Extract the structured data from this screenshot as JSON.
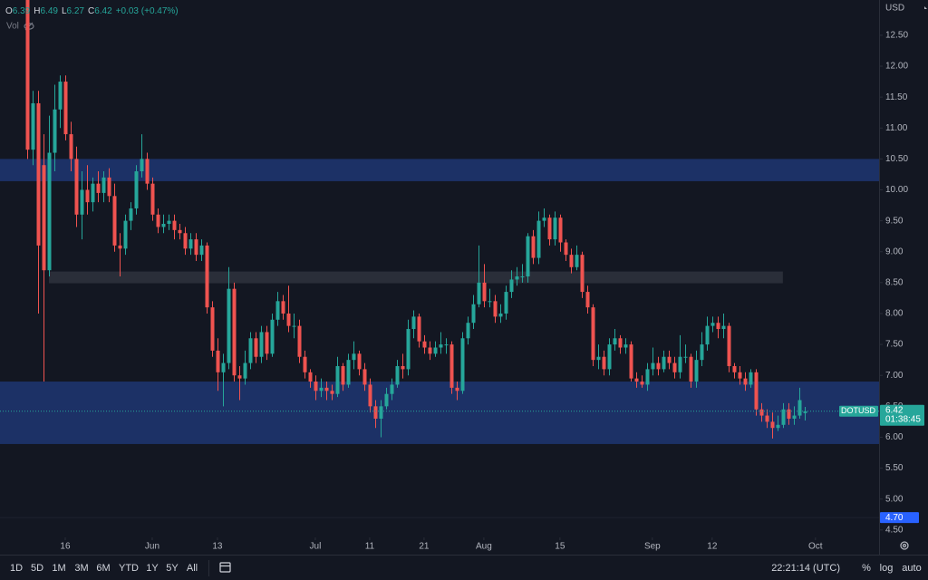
{
  "header": {
    "ohlc_labels": [
      "O",
      "H",
      "L",
      "C"
    ],
    "change": "+0.03 (+0.47%)",
    "volume_label": "Vol"
  },
  "chart_data": {
    "type": "candlestick",
    "symbol": "DOTUSD",
    "currency": "USD",
    "countdown": "01:38:45",
    "up_color": "#26a69a",
    "down_color": "#ef5350",
    "open": [
      13.2,
      10.65,
      11.4,
      10.4,
      8.7,
      10.6,
      11.3,
      11.75,
      10.9,
      10.5,
      9.6,
      10.0,
      9.8,
      10.1,
      9.95,
      10.2,
      9.9,
      9.1,
      9.05,
      9.5,
      9.7,
      10.3,
      10.5,
      10.1,
      9.6,
      9.4,
      9.45,
      9.5,
      9.35,
      9.3,
      9.05,
      9.2,
      8.95,
      9.1,
      8.1,
      7.4,
      7.05,
      7.2,
      8.4,
      7.0,
      6.95,
      7.2,
      7.6,
      7.3,
      7.7,
      7.35,
      7.9,
      8.2,
      8.0,
      7.8,
      7.8,
      7.3,
      7.05,
      6.9,
      6.75,
      6.8,
      6.75,
      6.7,
      7.15,
      6.85,
      7.25,
      7.35,
      7.1,
      6.85,
      6.5,
      6.3,
      6.5,
      6.7,
      6.85,
      7.15,
      7.1,
      7.75,
      7.95,
      7.55,
      7.45,
      7.35,
      7.45,
      7.5,
      7.5,
      6.8,
      6.75,
      7.6,
      7.85,
      8.15,
      8.5,
      8.2,
      8.2,
      7.95,
      8.0,
      8.35,
      8.55,
      8.6,
      8.6,
      9.25,
      8.9,
      9.5,
      9.55,
      9.2,
      9.55,
      9.15,
      8.95,
      8.75,
      8.95,
      8.35,
      8.1,
      7.25,
      7.3,
      7.1,
      7.5,
      7.6,
      7.45,
      7.5,
      6.95,
      6.9,
      6.85,
      7.1,
      7.2,
      7.1,
      7.3,
      7.2,
      7.05,
      7.3,
      7.3,
      6.9,
      7.25,
      7.5,
      7.8,
      7.85,
      7.75,
      7.8,
      7.15,
      7.05,
      6.95,
      6.85,
      7.05,
      6.45,
      6.35,
      6.25,
      6.15,
      6.2,
      6.45,
      6.3,
      6.35,
      6.39
    ],
    "high": [
      13.5,
      11.6,
      11.6,
      10.9,
      11.2,
      11.7,
      11.85,
      11.85,
      11.1,
      10.7,
      10.3,
      10.4,
      10.2,
      10.3,
      10.3,
      10.35,
      10.1,
      9.3,
      9.6,
      9.8,
      10.4,
      10.9,
      10.6,
      10.2,
      9.7,
      9.6,
      9.6,
      9.6,
      9.45,
      9.4,
      9.3,
      9.3,
      9.2,
      9.15,
      8.2,
      7.6,
      7.35,
      8.75,
      8.5,
      7.15,
      7.4,
      7.7,
      7.7,
      7.8,
      7.8,
      8.0,
      8.35,
      8.3,
      8.45,
      8.0,
      7.9,
      7.4,
      7.1,
      7.0,
      6.95,
      6.9,
      6.85,
      7.3,
      7.2,
      7.35,
      7.55,
      7.4,
      7.2,
      6.95,
      6.6,
      6.6,
      6.8,
      6.95,
      7.25,
      7.35,
      7.9,
      8.05,
      8.0,
      7.65,
      7.55,
      7.55,
      7.7,
      7.6,
      7.55,
      6.9,
      7.7,
      7.95,
      8.3,
      9.1,
      8.8,
      8.4,
      8.3,
      8.15,
      8.45,
      8.7,
      8.75,
      8.8,
      9.3,
      9.35,
      9.65,
      9.7,
      9.6,
      9.65,
      9.6,
      9.2,
      9.05,
      9.1,
      9.0,
      8.45,
      8.15,
      7.5,
      7.4,
      7.6,
      7.75,
      7.65,
      7.6,
      7.55,
      7.05,
      7.0,
      7.2,
      7.45,
      7.3,
      7.4,
      7.4,
      7.3,
      7.65,
      7.5,
      7.35,
      7.4,
      7.7,
      7.95,
      7.95,
      7.95,
      8.0,
      7.85,
      7.2,
      7.15,
      7.05,
      7.1,
      7.1,
      6.55,
      6.45,
      6.4,
      6.35,
      6.55,
      6.55,
      6.5,
      6.8,
      6.49
    ],
    "low": [
      10.5,
      10.4,
      8.0,
      6.9,
      8.6,
      10.3,
      11.0,
      10.8,
      10.3,
      9.4,
      9.2,
      9.6,
      9.65,
      9.8,
      9.8,
      9.8,
      9.0,
      8.6,
      8.95,
      9.35,
      9.6,
      10.2,
      10.0,
      9.5,
      9.3,
      9.3,
      9.35,
      9.2,
      9.2,
      8.95,
      8.95,
      8.85,
      8.85,
      8.0,
      7.3,
      6.75,
      6.5,
      7.1,
      6.9,
      6.6,
      6.85,
      7.1,
      7.2,
      7.2,
      7.25,
      7.3,
      7.8,
      7.9,
      7.7,
      7.6,
      7.2,
      6.95,
      6.8,
      6.6,
      6.65,
      6.6,
      6.6,
      6.65,
      6.75,
      6.8,
      7.1,
      7.0,
      6.75,
      6.4,
      6.15,
      6.0,
      6.45,
      6.6,
      6.8,
      6.95,
      7.0,
      7.6,
      7.45,
      7.35,
      7.25,
      7.3,
      7.35,
      7.35,
      6.7,
      6.6,
      6.7,
      7.5,
      7.75,
      8.1,
      8.1,
      8.1,
      7.85,
      7.85,
      7.9,
      8.25,
      8.45,
      8.5,
      8.5,
      8.8,
      8.8,
      9.4,
      9.1,
      9.1,
      9.0,
      8.85,
      8.65,
      8.7,
      8.25,
      8.0,
      7.15,
      7.1,
      7.0,
      7.0,
      7.4,
      7.35,
      7.35,
      6.9,
      6.8,
      6.8,
      6.75,
      7.0,
      7.0,
      7.05,
      7.1,
      6.95,
      6.95,
      7.2,
      6.8,
      6.8,
      7.15,
      7.4,
      7.7,
      7.6,
      7.6,
      7.05,
      6.95,
      6.85,
      6.75,
      6.8,
      6.35,
      6.25,
      6.15,
      5.98,
      6.1,
      6.15,
      6.2,
      6.2,
      6.3,
      6.27
    ],
    "close": [
      10.65,
      11.4,
      9.1,
      8.7,
      10.6,
      11.3,
      11.75,
      10.9,
      10.5,
      9.6,
      10.0,
      9.8,
      10.1,
      9.95,
      10.2,
      9.9,
      9.1,
      9.05,
      9.5,
      9.7,
      10.3,
      10.5,
      10.1,
      9.6,
      9.4,
      9.45,
      9.5,
      9.35,
      9.3,
      9.05,
      9.2,
      8.95,
      9.1,
      8.1,
      7.4,
      7.05,
      7.2,
      8.4,
      7.0,
      6.95,
      7.2,
      7.6,
      7.3,
      7.7,
      7.35,
      7.9,
      8.2,
      8.0,
      7.8,
      7.8,
      7.3,
      7.05,
      6.9,
      6.75,
      6.8,
      6.75,
      6.7,
      7.15,
      6.85,
      7.25,
      7.35,
      7.1,
      6.85,
      6.5,
      6.3,
      6.5,
      6.7,
      6.85,
      7.15,
      7.1,
      7.75,
      7.95,
      7.55,
      7.45,
      7.35,
      7.45,
      7.5,
      7.5,
      6.8,
      6.75,
      7.6,
      7.85,
      8.15,
      8.5,
      8.2,
      8.2,
      7.95,
      8.0,
      8.35,
      8.55,
      8.6,
      8.6,
      9.25,
      8.9,
      9.5,
      9.55,
      9.2,
      9.55,
      9.15,
      8.95,
      8.75,
      8.95,
      8.35,
      8.1,
      7.25,
      7.3,
      7.1,
      7.5,
      7.6,
      7.45,
      7.5,
      6.95,
      6.9,
      6.85,
      7.1,
      7.2,
      7.1,
      7.3,
      7.2,
      7.05,
      7.3,
      7.3,
      6.9,
      7.25,
      7.5,
      7.8,
      7.85,
      7.75,
      7.8,
      7.15,
      7.05,
      6.95,
      6.85,
      7.05,
      6.45,
      6.35,
      6.25,
      6.15,
      6.2,
      6.45,
      6.3,
      6.35,
      6.6,
      6.42
    ],
    "xlim": [
      -5,
      156.7
    ],
    "ylim": [
      4.38,
      13.07
    ],
    "xticks": [
      {
        "value": 7,
        "label": "16"
      },
      {
        "value": 23,
        "label": "Jun"
      },
      {
        "value": 35,
        "label": "13"
      },
      {
        "value": 53,
        "label": "Jul"
      },
      {
        "value": 63,
        "label": "11"
      },
      {
        "value": 73,
        "label": "21"
      },
      {
        "value": 84,
        "label": "Aug"
      },
      {
        "value": 98,
        "label": "15"
      },
      {
        "value": 115,
        "label": "Sep"
      },
      {
        "value": 126,
        "label": "12"
      },
      {
        "value": 145,
        "label": "Oct"
      }
    ],
    "yticks": [
      {
        "value": 12.5,
        "label": "12.50"
      },
      {
        "value": 12,
        "label": "12.00"
      },
      {
        "value": 11.5,
        "label": "11.50"
      },
      {
        "value": 11,
        "label": "11.00"
      },
      {
        "value": 10.5,
        "label": "10.50"
      },
      {
        "value": 10,
        "label": "10.00"
      },
      {
        "value": 9.5,
        "label": "9.50"
      },
      {
        "value": 9,
        "label": "9.00"
      },
      {
        "value": 8.5,
        "label": "8.50"
      },
      {
        "value": 8,
        "label": "8.00"
      },
      {
        "value": 7.5,
        "label": "7.50"
      },
      {
        "value": 7,
        "label": "7.00"
      },
      {
        "value": 6.5,
        "label": "6.50"
      },
      {
        "value": 6,
        "label": "6.00"
      },
      {
        "value": 5.5,
        "label": "5.50"
      },
      {
        "value": 5,
        "label": "5.00"
      },
      {
        "value": 4.5,
        "label": "4.50"
      }
    ],
    "alert_price": {
      "value": 4.7,
      "label": "4.70"
    },
    "zones": [
      {
        "from": 10.14,
        "to": 10.5,
        "color": "#1c3166"
      },
      {
        "from": 5.89,
        "to": 6.9,
        "color": "#1c3166"
      },
      {
        "from": 8.49,
        "to": 8.68,
        "x_from": 4,
        "x_to": 139,
        "color": "#2a2e39"
      }
    ]
  },
  "toolbar": {
    "ranges": [
      "1D",
      "5D",
      "1M",
      "3M",
      "6M",
      "YTD",
      "1Y",
      "5Y",
      "All"
    ],
    "time": "22:21:14 (UTC)",
    "options": [
      "%",
      "log",
      "auto"
    ]
  }
}
